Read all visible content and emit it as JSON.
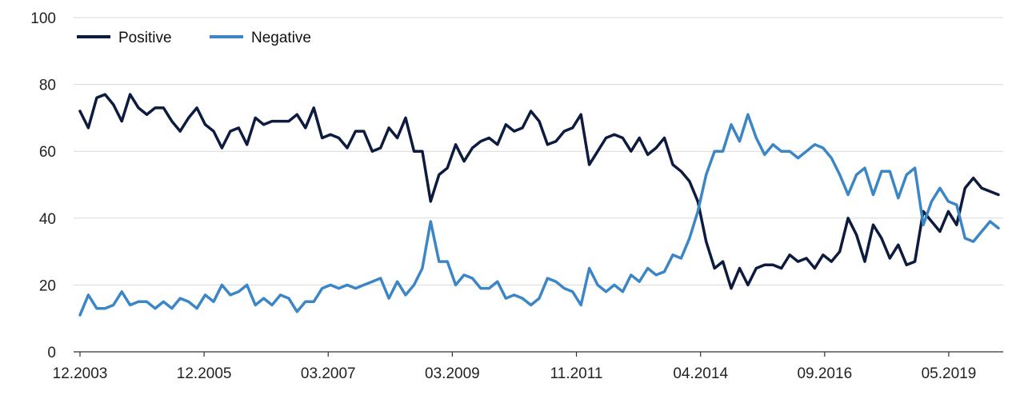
{
  "chart_data": {
    "type": "line",
    "title": "",
    "xlabel": "",
    "ylabel": "",
    "ylim": [
      0,
      100
    ],
    "y_ticks": [
      "0",
      "20",
      "40",
      "60",
      "80",
      "100"
    ],
    "x_tick_labels": [
      "12.2003",
      "12.2005",
      "03.2007",
      "03.2009",
      "11.2011",
      "04.2014",
      "09.2016",
      "05.2019"
    ],
    "grid": true,
    "legend_position": "top-left",
    "series": [
      {
        "name": "Positive",
        "color": "#0d1b3e",
        "values": [
          72,
          67,
          76,
          77,
          74,
          69,
          77,
          73,
          71,
          73,
          73,
          69,
          66,
          70,
          73,
          68,
          66,
          61,
          66,
          67,
          62,
          70,
          68,
          69,
          69,
          69,
          71,
          67,
          73,
          64,
          65,
          64,
          61,
          66,
          66,
          60,
          61,
          67,
          64,
          70,
          60,
          60,
          45,
          53,
          55,
          62,
          57,
          61,
          63,
          64,
          62,
          68,
          66,
          67,
          72,
          69,
          62,
          63,
          66,
          67,
          71,
          56,
          60,
          64,
          65,
          64,
          60,
          64,
          59,
          61,
          64,
          56,
          54,
          51,
          45,
          33,
          25,
          27,
          19,
          25,
          20,
          25,
          26,
          26,
          25,
          29,
          27,
          28,
          25,
          29,
          27,
          30,
          40,
          35,
          27,
          38,
          34,
          28,
          32,
          26,
          27,
          42,
          39,
          36,
          42,
          38,
          49,
          52,
          49,
          48,
          47
        ]
      },
      {
        "name": "Negative",
        "color": "#3d86c6",
        "values": [
          11,
          17,
          13,
          13,
          14,
          18,
          14,
          15,
          15,
          13,
          15,
          13,
          16,
          15,
          13,
          17,
          15,
          20,
          17,
          18,
          20,
          14,
          16,
          14,
          17,
          16,
          12,
          15,
          15,
          19,
          20,
          19,
          20,
          19,
          20,
          21,
          22,
          16,
          21,
          17,
          20,
          25,
          39,
          27,
          27,
          20,
          23,
          22,
          19,
          19,
          21,
          16,
          17,
          16,
          14,
          16,
          22,
          21,
          19,
          18,
          14,
          25,
          20,
          18,
          20,
          18,
          23,
          21,
          25,
          23,
          24,
          29,
          28,
          34,
          42,
          53,
          60,
          60,
          68,
          63,
          71,
          64,
          59,
          62,
          60,
          60,
          58,
          60,
          62,
          61,
          58,
          53,
          47,
          53,
          55,
          47,
          54,
          54,
          46,
          53,
          55,
          38,
          45,
          49,
          45,
          44,
          34,
          33,
          36,
          39,
          37
        ]
      }
    ]
  }
}
